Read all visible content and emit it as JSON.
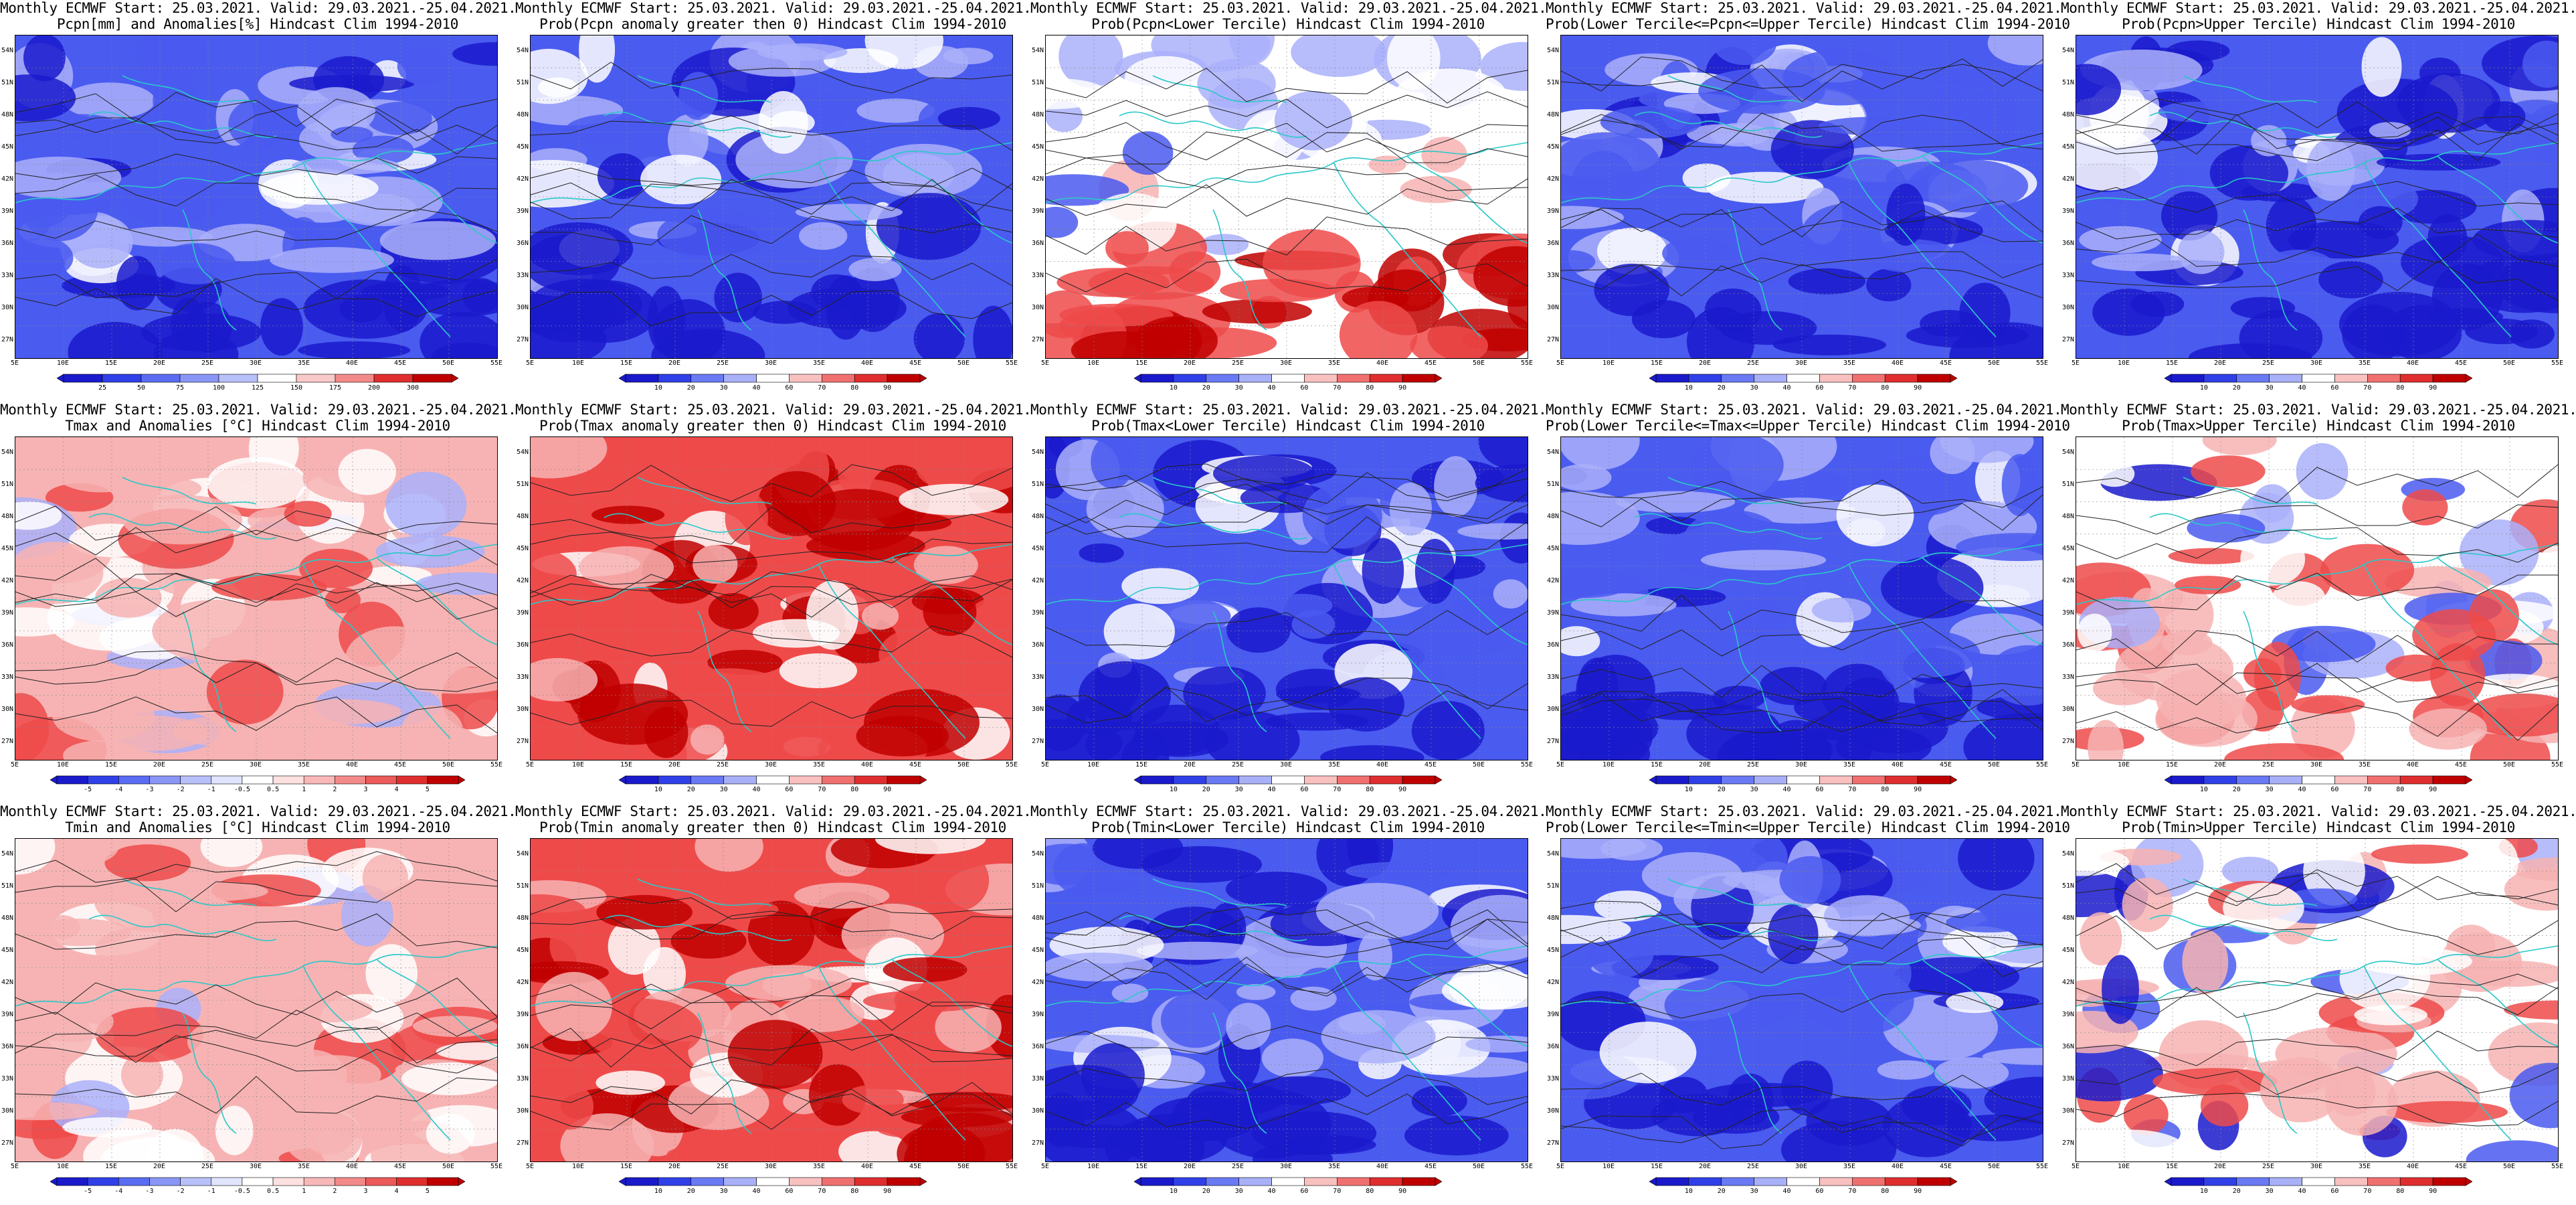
{
  "lat_labels": [
    "54N",
    "51N",
    "48N",
    "45N",
    "42N",
    "39N",
    "36N",
    "33N",
    "30N",
    "27N"
  ],
  "lon_labels": [
    "5E",
    "10E",
    "15E",
    "20E",
    "25E",
    "30E",
    "35E",
    "40E",
    "45E",
    "50E",
    "55E"
  ],
  "cb_labels": {
    "pcpn": [
      "25",
      "50",
      "75",
      "100",
      "125",
      "150",
      "175",
      "200",
      "300"
    ],
    "prob": [
      "10",
      "20",
      "30",
      "40",
      "60",
      "70",
      "80",
      "90"
    ],
    "temp": [
      "-5",
      "-4",
      "-3",
      "-2",
      "-1",
      "-0.5",
      "0.5",
      "1",
      "2",
      "3",
      "4",
      "5"
    ]
  },
  "colors": {
    "deep_blue": "#1a1acc",
    "mid_blue": "#4a5bf0",
    "light_blue": "#aab0fa",
    "white": "#ffffff",
    "light_red": "#f7b3b3",
    "mid_red": "#ef4a4a",
    "deep_red": "#c00000",
    "coast": "#2ac8c8",
    "contour": "#222222"
  },
  "panels": [
    {
      "line1": "Monthly ECMWF Start: 25.03.2021. Valid: 29.03.2021.-25.04.2021.",
      "line2": "Pcpn[mm] and Anomalies[%] Hindcast Clim 1994-2010",
      "cb": "pcpn",
      "scheme": "blue",
      "seed": 11
    },
    {
      "line1": "Monthly ECMWF Start: 25.03.2021. Valid: 29.03.2021.-25.04.2021.",
      "line2": "Prob(Pcpn anomaly greater then 0) Hindcast Clim 1994-2010",
      "cb": "prob",
      "scheme": "blue",
      "seed": 23
    },
    {
      "line1": "Monthly ECMWF Start: 25.03.2021. Valid: 29.03.2021.-25.04.2021.",
      "line2": "Prob(Pcpn<Lower Tercile) Hindcast Clim 1994-2010",
      "cb": "prob",
      "scheme": "redsouth",
      "seed": 37
    },
    {
      "line1": "Monthly ECMWF Start: 25.03.2021. Valid: 29.03.2021.-25.04.2021.",
      "line2": "Prob(Lower Tercile<=Pcpn<=Upper Tercile) Hindcast Clim 1994-2010",
      "cb": "prob",
      "scheme": "blue",
      "seed": 41
    },
    {
      "line1": "Monthly ECMWF Start: 25.03.2021. Valid: 29.03.2021.-25.04.2021.",
      "line2": "Prob(Pcpn>Upper Tercile) Hindcast Clim 1994-2010",
      "cb": "prob",
      "scheme": "bluedeep",
      "seed": 53
    },
    {
      "line1": "Monthly ECMWF Start: 25.03.2021. Valid: 29.03.2021.-25.04.2021.",
      "line2": "Tmax and Anomalies [°C] Hindcast Clim 1994-2010",
      "cb": "temp",
      "scheme": "redlight",
      "seed": 61
    },
    {
      "line1": "Monthly ECMWF Start: 25.03.2021. Valid: 29.03.2021.-25.04.2021.",
      "line2": "Prob(Tmax anomaly greater then 0) Hindcast Clim 1994-2010",
      "cb": "prob",
      "scheme": "red",
      "seed": 73
    },
    {
      "line1": "Monthly ECMWF Start: 25.03.2021. Valid: 29.03.2021.-25.04.2021.",
      "line2": "Prob(Tmax<Lower Tercile) Hindcast Clim 1994-2010",
      "cb": "prob",
      "scheme": "bluedeep",
      "seed": 83
    },
    {
      "line1": "Monthly ECMWF Start: 25.03.2021. Valid: 29.03.2021.-25.04.2021.",
      "line2": "Prob(Lower Tercile<=Tmax<=Upper Tercile) Hindcast Clim 1994-2010",
      "cb": "prob",
      "scheme": "blue",
      "seed": 97
    },
    {
      "line1": "Monthly ECMWF Start: 25.03.2021. Valid: 29.03.2021.-25.04.2021.",
      "line2": "Prob(Tmax>Upper Tercile) Hindcast Clim 1994-2010",
      "cb": "prob",
      "scheme": "mixed",
      "seed": 101
    },
    {
      "line1": "Monthly ECMWF Start: 25.03.2021. Valid: 29.03.2021.-25.04.2021.",
      "line2": "Tmin and Anomalies [°C] Hindcast Clim 1994-2010",
      "cb": "temp",
      "scheme": "redlight",
      "seed": 113
    },
    {
      "line1": "Monthly ECMWF Start: 25.03.2021. Valid: 29.03.2021.-25.04.2021.",
      "line2": "Prob(Tmin anomaly greater then 0) Hindcast Clim 1994-2010",
      "cb": "prob",
      "scheme": "red",
      "seed": 127
    },
    {
      "line1": "Monthly ECMWF Start: 25.03.2021. Valid: 29.03.2021.-25.04.2021.",
      "line2": "Prob(Tmin<Lower Tercile) Hindcast Clim 1994-2010",
      "cb": "prob",
      "scheme": "bluedeep",
      "seed": 131
    },
    {
      "line1": "Monthly ECMWF Start: 25.03.2021. Valid: 29.03.2021.-25.04.2021.",
      "line2": "Prob(Lower Tercile<=Tmin<=Upper Tercile) Hindcast Clim 1994-2010",
      "cb": "prob",
      "scheme": "blue",
      "seed": 149
    },
    {
      "line1": "Monthly ECMWF Start: 25.03.2021. Valid: 29.03.2021.-25.04.2021.",
      "line2": "Prob(Tmin>Upper Tercile) Hindcast Clim 1994-2010",
      "cb": "prob",
      "scheme": "mixed",
      "seed": 157
    }
  ],
  "chart_data": {
    "type": "heatmap",
    "lon_range": [
      5,
      55
    ],
    "lat_range": [
      25,
      55
    ],
    "grid": true,
    "note_panels": 15
  }
}
